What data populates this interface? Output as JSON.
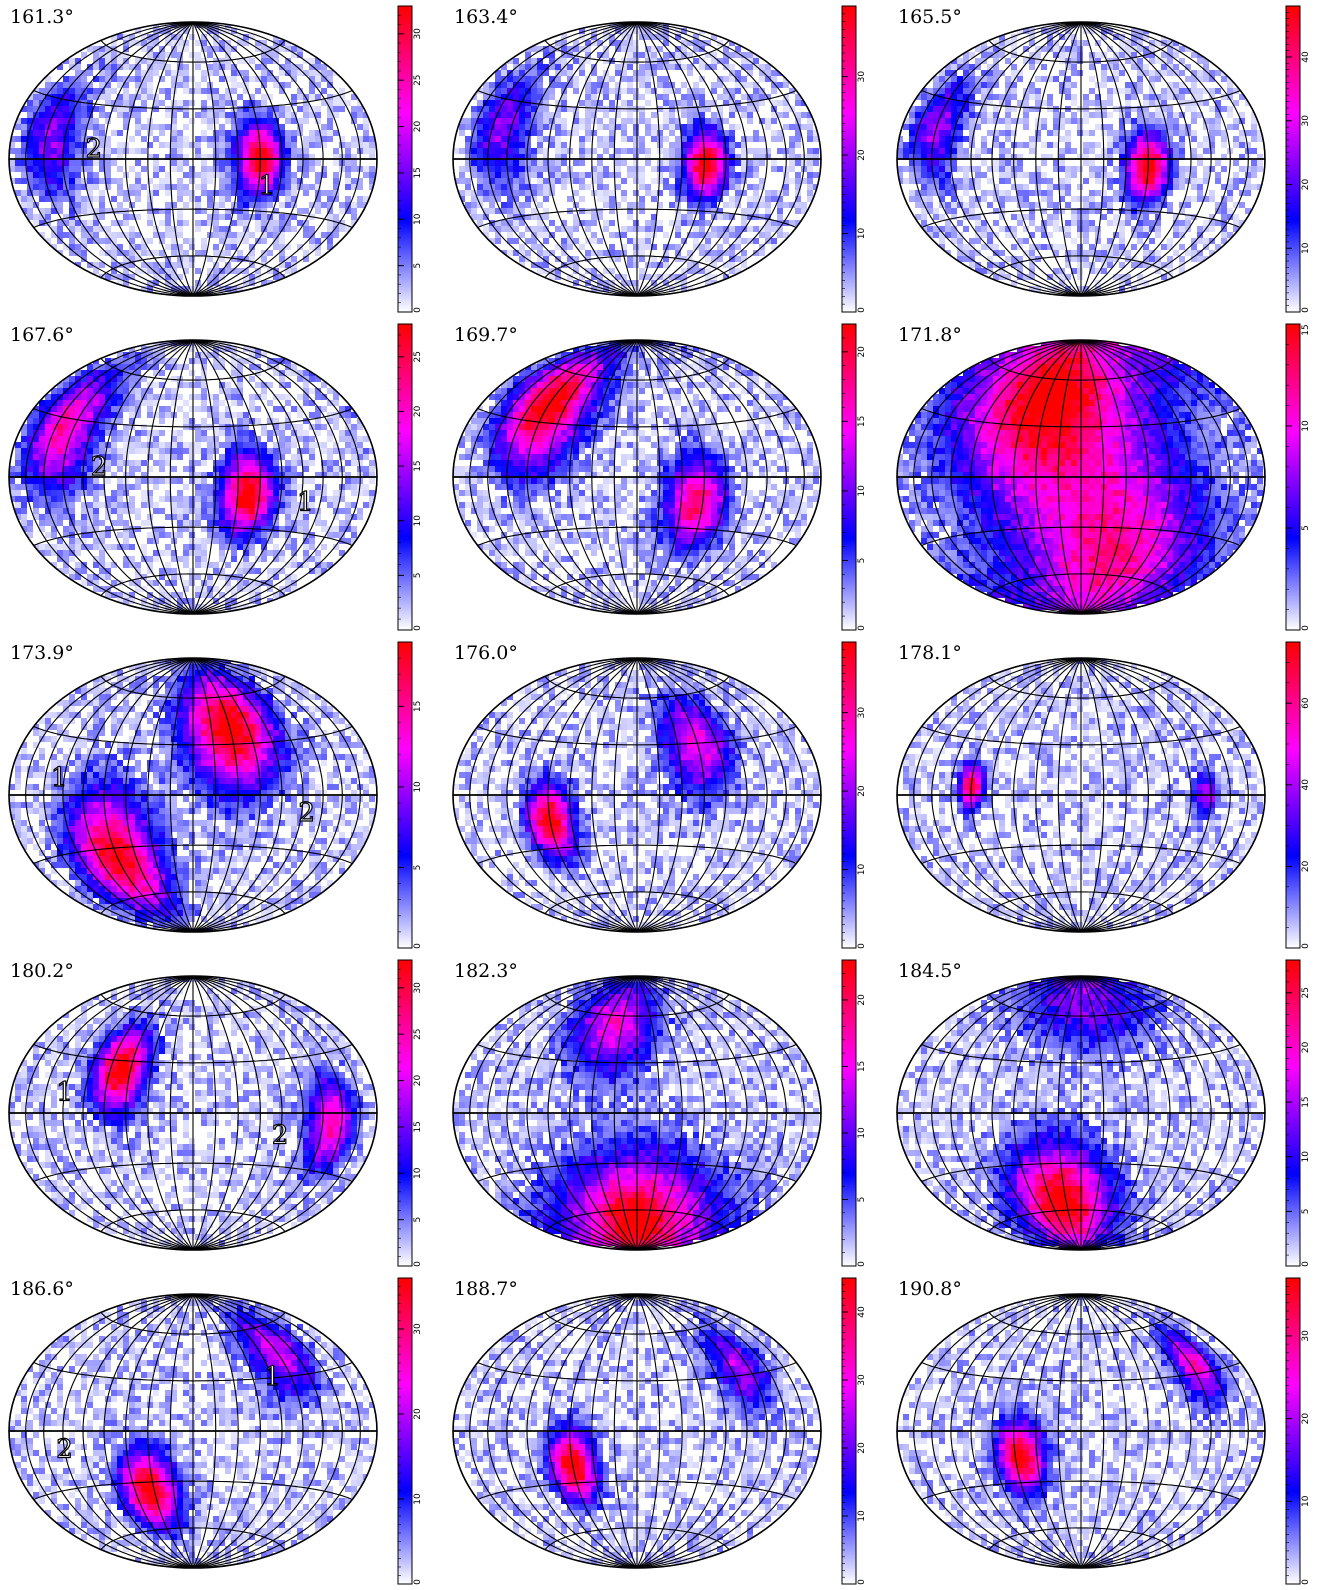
{
  "chart_data": [
    {
      "type": "heatmap",
      "title": "161.3°",
      "colorbar": {
        "ticks": [
          0,
          5,
          10,
          15,
          20,
          25,
          30
        ],
        "max": 33
      },
      "hotspots": [
        {
          "lon": 60,
          "lat": 0,
          "peak": 33,
          "spread": 14
        },
        {
          "lon": -135,
          "lat": 10,
          "peak": 14,
          "spread": 20
        }
      ],
      "annotations": [
        {
          "text": "2",
          "lon": -90,
          "lat": 5
        },
        {
          "text": "1",
          "lon": 68,
          "lat": -16
        }
      ]
    },
    {
      "type": "heatmap",
      "title": "163.4°",
      "colorbar": {
        "ticks": [
          0,
          10,
          20,
          30
        ],
        "max": 39
      },
      "hotspots": [
        {
          "lon": 62,
          "lat": -3,
          "peak": 39,
          "spread": 13
        },
        {
          "lon": -130,
          "lat": 15,
          "peak": 16,
          "spread": 20
        }
      ],
      "annotations": []
    },
    {
      "type": "heatmap",
      "title": "165.5°",
      "colorbar": {
        "ticks": [
          0,
          10,
          20,
          30,
          40
        ],
        "max": 48
      },
      "hotspots": [
        {
          "lon": 60,
          "lat": -5,
          "peak": 48,
          "spread": 13
        },
        {
          "lon": -140,
          "lat": 15,
          "peak": 22,
          "spread": 17
        }
      ],
      "annotations": []
    },
    {
      "type": "heatmap",
      "title": "167.6°",
      "colorbar": {
        "ticks": [
          0,
          5,
          10,
          15,
          20,
          25
        ],
        "max": 28
      },
      "hotspots": [
        {
          "lon": 50,
          "lat": -10,
          "peak": 28,
          "spread": 16
        },
        {
          "lon": -130,
          "lat": 25,
          "peak": 20,
          "spread": 22
        }
      ],
      "annotations": [
        {
          "text": "2",
          "lon": -85,
          "lat": 5
        },
        {
          "text": "1",
          "lon": 105,
          "lat": -14
        }
      ]
    },
    {
      "type": "heatmap",
      "title": "169.7°",
      "colorbar": {
        "ticks": [
          0,
          5,
          10,
          15,
          20
        ],
        "max": 22
      },
      "hotspots": [
        {
          "lon": -100,
          "lat": 40,
          "peak": 22,
          "spread": 24
        },
        {
          "lon": 55,
          "lat": -15,
          "peak": 18,
          "spread": 18
        }
      ],
      "annotations": []
    },
    {
      "type": "heatmap",
      "title": "171.8°",
      "colorbar": {
        "ticks": [
          0,
          5,
          10,
          15.0
        ],
        "max": 15
      },
      "hotspots": [
        {
          "lon": -40,
          "lat": 50,
          "peak": 15,
          "spread": 45
        },
        {
          "lon": 40,
          "lat": -50,
          "peak": 11,
          "spread": 45
        }
      ],
      "annotations": []
    },
    {
      "type": "heatmap",
      "title": "173.9°",
      "colorbar": {
        "ticks": [
          0,
          5,
          10,
          15
        ],
        "max": 19
      },
      "hotspots": [
        {
          "lon": 40,
          "lat": 40,
          "peak": 19,
          "spread": 25
        },
        {
          "lon": -80,
          "lat": -35,
          "peak": 18,
          "spread": 25
        }
      ],
      "annotations": [
        {
          "text": "1",
          "lon": -125,
          "lat": 8
        },
        {
          "text": "2",
          "lon": 105,
          "lat": -10
        }
      ]
    },
    {
      "type": "heatmap",
      "title": "176.0°",
      "colorbar": {
        "ticks": [
          0,
          10,
          20,
          30
        ],
        "max": 39
      },
      "hotspots": [
        {
          "lon": -80,
          "lat": -15,
          "peak": 39,
          "spread": 14
        },
        {
          "lon": 60,
          "lat": 30,
          "peak": 24,
          "spread": 20
        }
      ],
      "annotations": []
    },
    {
      "type": "heatmap",
      "title": "178.1°",
      "colorbar": {
        "ticks": [
          0,
          20,
          40,
          60
        ],
        "max": 75
      },
      "hotspots": [
        {
          "lon": -100,
          "lat": 5,
          "peak": 70,
          "spread": 8
        },
        {
          "lon": 115,
          "lat": 0,
          "peak": 40,
          "spread": 8
        }
      ],
      "annotations": []
    },
    {
      "type": "heatmap",
      "title": "180.2°",
      "colorbar": {
        "ticks": [
          0,
          5,
          10,
          15,
          20,
          25,
          30
        ],
        "max": 33
      },
      "hotspots": [
        {
          "lon": -70,
          "lat": 25,
          "peak": 33,
          "spread": 16
        },
        {
          "lon": 130,
          "lat": -5,
          "peak": 24,
          "spread": 16
        }
      ],
      "annotations": [
        {
          "text": "1",
          "lon": -120,
          "lat": 10
        },
        {
          "text": "2",
          "lon": 80,
          "lat": -13
        }
      ]
    },
    {
      "type": "heatmap",
      "title": "182.3°",
      "colorbar": {
        "ticks": [
          0,
          5,
          10,
          15,
          20
        ],
        "max": 23
      },
      "hotspots": [
        {
          "lon": 0,
          "lat": -70,
          "peak": 23,
          "spread": 30
        },
        {
          "lon": -30,
          "lat": 55,
          "peak": 14,
          "spread": 22
        }
      ],
      "annotations": []
    },
    {
      "type": "heatmap",
      "title": "184.5°",
      "colorbar": {
        "ticks": [
          0,
          5,
          10,
          15,
          20,
          25
        ],
        "max": 28
      },
      "hotspots": [
        {
          "lon": -25,
          "lat": -55,
          "peak": 28,
          "spread": 25
        },
        {
          "lon": 10,
          "lat": 75,
          "peak": 12,
          "spread": 25
        }
      ],
      "annotations": []
    },
    {
      "type": "heatmap",
      "title": "186.6°",
      "colorbar": {
        "ticks": [
          0,
          10,
          20,
          30
        ],
        "max": 36
      },
      "hotspots": [
        {
          "lon": -45,
          "lat": -35,
          "peak": 36,
          "spread": 16
        },
        {
          "lon": 100,
          "lat": 45,
          "peak": 20,
          "spread": 18
        }
      ],
      "annotations": [
        {
          "text": "2",
          "lon": -120,
          "lat": -10
        },
        {
          "text": "1",
          "lon": 80,
          "lat": 30
        }
      ]
    },
    {
      "type": "heatmap",
      "title": "188.7°",
      "colorbar": {
        "ticks": [
          0,
          10,
          20,
          30,
          40
        ],
        "max": 45
      },
      "hotspots": [
        {
          "lon": -60,
          "lat": -20,
          "peak": 45,
          "spread": 14
        },
        {
          "lon": 110,
          "lat": 35,
          "peak": 22,
          "spread": 16
        }
      ],
      "annotations": []
    },
    {
      "type": "heatmap",
      "title": "190.8°",
      "colorbar": {
        "ticks": [
          0,
          10,
          20,
          30
        ],
        "max": 37
      },
      "hotspots": [
        {
          "lon": -55,
          "lat": -15,
          "peak": 37,
          "spread": 14
        },
        {
          "lon": 125,
          "lat": 35,
          "peak": 24,
          "spread": 14
        }
      ],
      "annotations": []
    }
  ]
}
